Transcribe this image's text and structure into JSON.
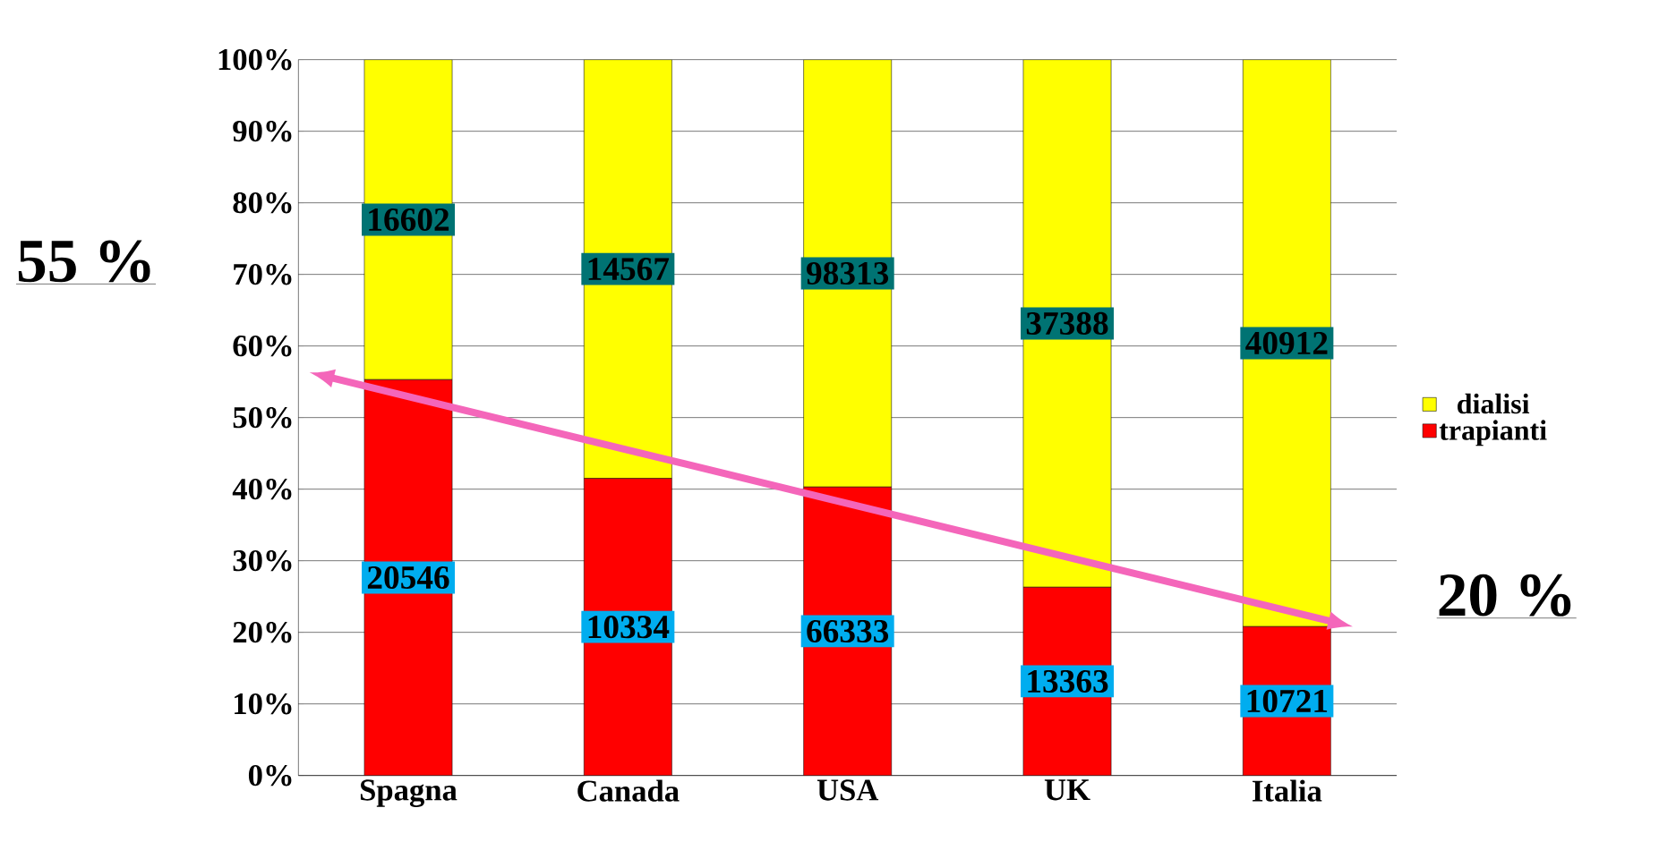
{
  "chart_data": {
    "type": "bar",
    "stacked": true,
    "categories": [
      "Spagna",
      "Canada",
      "USA",
      "UK",
      "Italia"
    ],
    "series": [
      {
        "name": "trapianti",
        "color": "#ff0000",
        "values": [
          55.3,
          41.5,
          40.3,
          26.3,
          20.8
        ]
      },
      {
        "name": "dialisi",
        "color": "#ffff00",
        "values": [
          44.7,
          58.5,
          59.7,
          73.7,
          79.2
        ]
      }
    ],
    "ylim": [
      0,
      100
    ],
    "yticks": [
      {
        "value": 0,
        "label": "0%"
      },
      {
        "value": 10,
        "label": "10%"
      },
      {
        "value": 20,
        "label": "20%"
      },
      {
        "value": 30,
        "label": "30%"
      },
      {
        "value": 40,
        "label": "40%"
      },
      {
        "value": 50,
        "label": "50%"
      },
      {
        "value": 60,
        "label": "60%"
      },
      {
        "value": 70,
        "label": "70%"
      },
      {
        "value": 80,
        "label": "80%"
      },
      {
        "value": 90,
        "label": "90%"
      },
      {
        "value": 100,
        "label": "100%"
      }
    ],
    "grid": "y",
    "legend": "right",
    "annotations": [
      "55 %",
      "20 %",
      "20546",
      "10334",
      "66333",
      "13363",
      "10721",
      "16602",
      "14567",
      "98313",
      "37388",
      "40912"
    ]
  }
}
